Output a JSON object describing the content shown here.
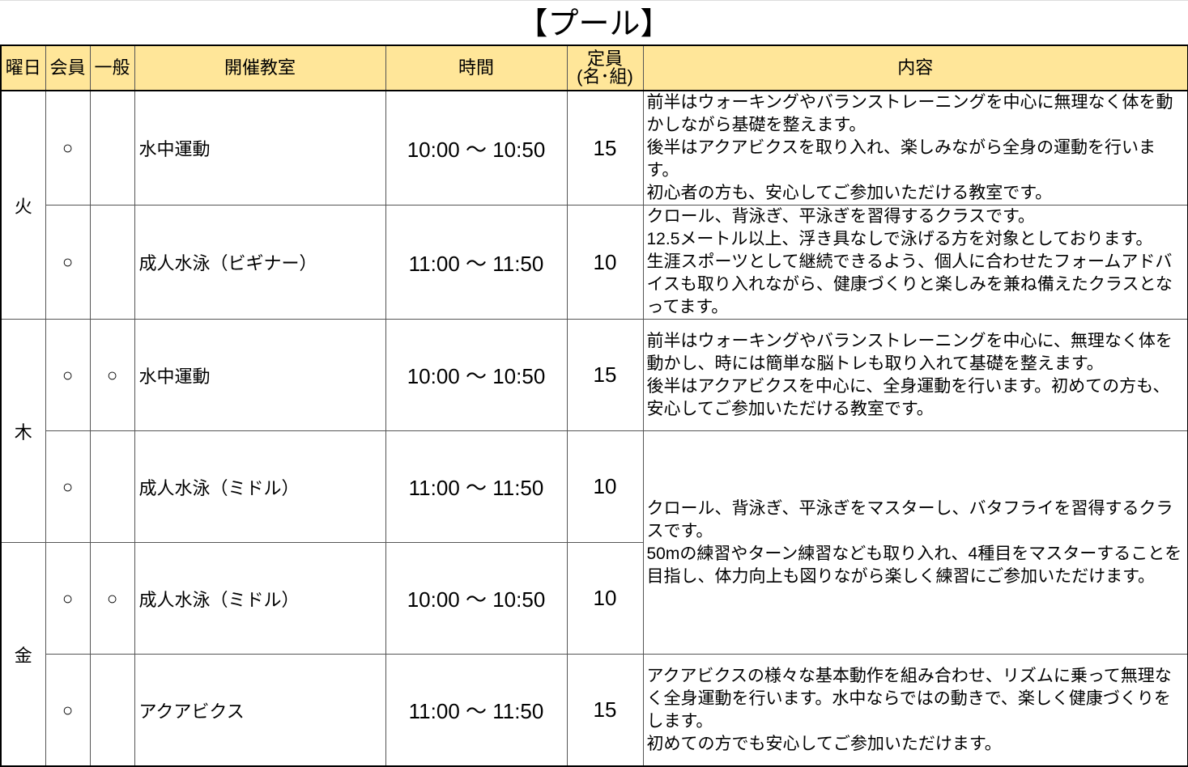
{
  "title": "【プール】",
  "header": {
    "day": "曜日",
    "member": "会員",
    "general": "一般",
    "class": "開催教室",
    "time": "時間",
    "capacity_line1": "定員",
    "capacity_line2": "(名･組)",
    "content": "内容"
  },
  "days": {
    "tue": "火",
    "thu": "木",
    "fri": "金"
  },
  "mark": "○",
  "rows": [
    {
      "member": "○",
      "general": "",
      "class": "水中運動",
      "time": "10:00 ～ 10:50",
      "capacity": "15",
      "content": "前半はウォーキングやバランストレーニングを中心に無理なく体を動かしながら基礎を整えます。\n後半はアクアビクスを取り入れ、楽しみながら全身の運動を行います。\n初心者の方も、安心してご参加いただける教室です。"
    },
    {
      "member": "○",
      "general": "",
      "class": "成人水泳（ビギナー）",
      "time": "11:00 ～ 11:50",
      "capacity": "10",
      "content": "クロール、背泳ぎ、平泳ぎを習得するクラスです。\n12.5メートル以上、浮き具なしで泳げる方を対象としております。\n生涯スポーツとして継続できるよう、個人に合わせたフォームアドバイスも取り入れながら、健康づくりと楽しみを兼ね備えたクラスとなってます。"
    },
    {
      "member": "○",
      "general": "○",
      "class": "水中運動",
      "time": "10:00 ～ 10:50",
      "capacity": "15",
      "content": "前半はウォーキングやバランストレーニングを中心に、無理なく体を動かし、時には簡単な脳トレも取り入れて基礎を整えます。\n後半はアクアビクスを中心に、全身運動を行います。初めての方も、安心してご参加いただける教室です。"
    },
    {
      "member": "○",
      "general": "",
      "class": "成人水泳（ミドル）",
      "time": "11:00 ～ 11:50",
      "capacity": "10",
      "content": "クロール、背泳ぎ、平泳ぎをマスターし、バタフライを習得するクラスです。\n50mの練習やターン練習なども取り入れ、4種目をマスターすることを目指し、体力向上も図りながら楽しく練習にご参加いただけます。"
    },
    {
      "member": "○",
      "general": "○",
      "class": "成人水泳（ミドル）",
      "time": "10:00 ～ 10:50",
      "capacity": "10"
    },
    {
      "member": "○",
      "general": "",
      "class": "アクアビクス",
      "time": "11:00 ～ 11:50",
      "capacity": "15",
      "content": "アクアビクスの様々な基本動作を組み合わせ、リズムに乗って無理なく全身運動を行います。水中ならではの動きで、楽しく健康づくりをします。\n初めての方でも安心してご参加いただけます。"
    }
  ]
}
